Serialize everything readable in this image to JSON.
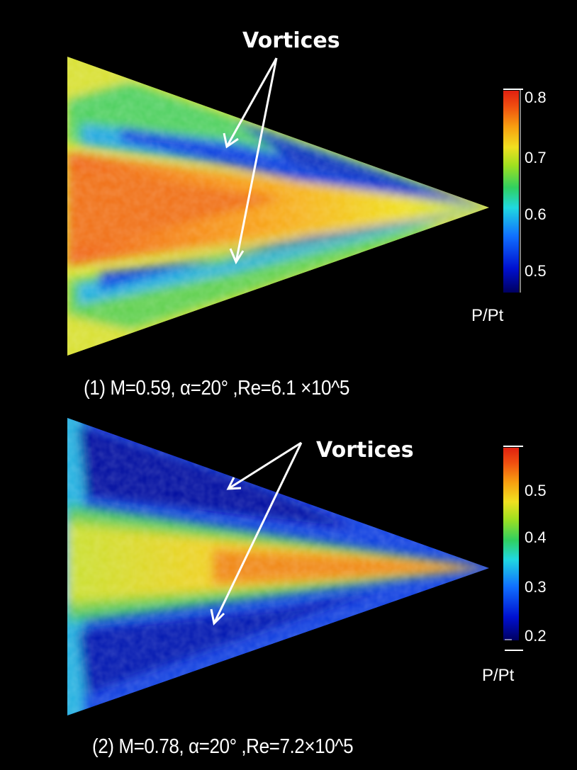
{
  "panels": [
    {
      "vortex_label": "Vortices",
      "caption": "(1) M=0.59, α=20° ,Re=6.1 ×10^5",
      "colorbar": {
        "title": "P/Pt",
        "ticks": [
          "0.8",
          "0.7",
          "0.6",
          "0.5"
        ],
        "range": [
          0.46,
          0.82
        ]
      }
    },
    {
      "vortex_label": "Vortices",
      "caption": "(2) M=0.78, α=20° ,Re=7.2×10^5",
      "colorbar": {
        "title": "P/Pt",
        "ticks": [
          "0.5",
          "0.4",
          "0.3",
          "0.2"
        ],
        "range": [
          0.17,
          0.58
        ]
      }
    }
  ],
  "colors": {
    "background": "#000000",
    "text": "#ffffff",
    "colormap": [
      "#000060",
      "#0010d0",
      "#1070ff",
      "#20d8e0",
      "#30d060",
      "#a0e020",
      "#f0e020",
      "#f8a010",
      "#f05010",
      "#e02010"
    ]
  }
}
